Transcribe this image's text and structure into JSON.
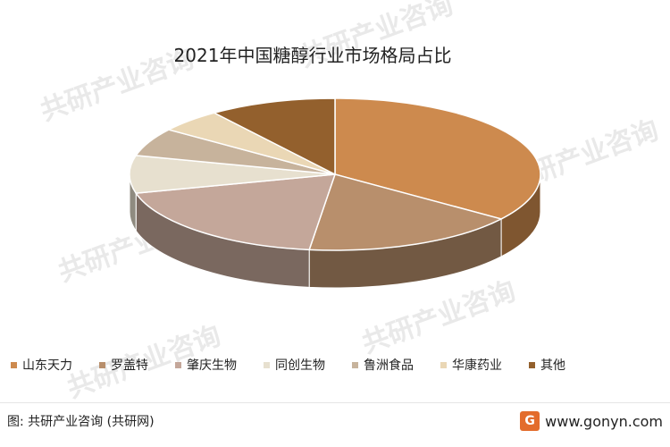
{
  "chart_data": {
    "type": "pie",
    "title": "2021年中国糖醇行业市场格局占比",
    "categories": [
      "山东天力",
      "罗盖特",
      "肇庆生物",
      "同创生物",
      "鲁洲食品",
      "华康药业",
      "其他"
    ],
    "values": [
      35,
      17,
      19,
      8,
      6,
      5,
      10
    ],
    "colors": [
      "#cd8a4e",
      "#b88f6c",
      "#c4a79a",
      "#e7e0cf",
      "#c7b39c",
      "#ead7b5",
      "#93602d"
    ],
    "legend_position": "bottom"
  },
  "source": {
    "text": "图: 共研产业咨询 (共研网)",
    "site": "www.gonyn.com",
    "logo_letter": "G"
  },
  "watermark_text": "共研产业咨询"
}
